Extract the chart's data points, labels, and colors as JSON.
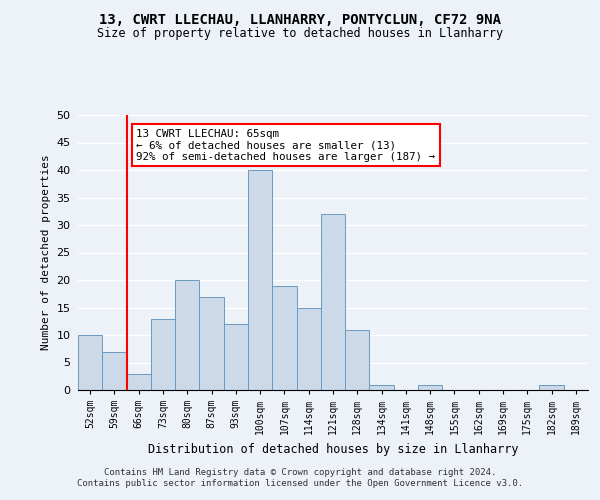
{
  "title": "13, CWRT LLECHAU, LLANHARRY, PONTYCLUN, CF72 9NA",
  "subtitle": "Size of property relative to detached houses in Llanharry",
  "xlabel": "Distribution of detached houses by size in Llanharry",
  "ylabel": "Number of detached properties",
  "bar_color": "#ccd9e8",
  "bar_edge_color": "#6a9abf",
  "categories": [
    "52sqm",
    "59sqm",
    "66sqm",
    "73sqm",
    "80sqm",
    "87sqm",
    "93sqm",
    "100sqm",
    "107sqm",
    "114sqm",
    "121sqm",
    "128sqm",
    "134sqm",
    "141sqm",
    "148sqm",
    "155sqm",
    "162sqm",
    "169sqm",
    "175sqm",
    "182sqm",
    "189sqm"
  ],
  "values": [
    10,
    7,
    3,
    13,
    20,
    17,
    12,
    40,
    19,
    15,
    32,
    11,
    1,
    0,
    1,
    0,
    0,
    0,
    0,
    1,
    0
  ],
  "ylim": [
    0,
    50
  ],
  "yticks": [
    0,
    5,
    10,
    15,
    20,
    25,
    30,
    35,
    40,
    45,
    50
  ],
  "red_line_index": 2,
  "annotation_text": "13 CWRT LLECHAU: 65sqm\n← 6% of detached houses are smaller (13)\n92% of semi-detached houses are larger (187) →",
  "annotation_box_color": "white",
  "annotation_box_edge_color": "red",
  "footnote1": "Contains HM Land Registry data © Crown copyright and database right 2024.",
  "footnote2": "Contains public sector information licensed under the Open Government Licence v3.0.",
  "background_color": "#edf2f8",
  "grid_color": "white"
}
